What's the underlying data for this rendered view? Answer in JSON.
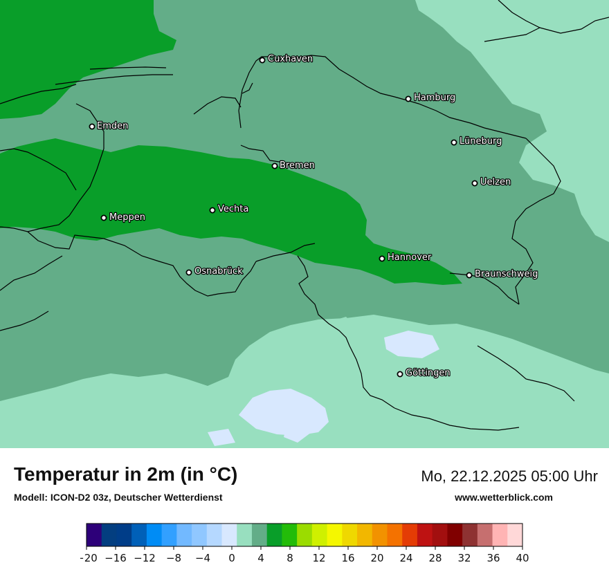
{
  "map": {
    "title": "Temperatur in 2m (in °C)",
    "model": "Modell: ICON-D2 03z, Deutscher Wetterdienst",
    "datetime": "Mo, 22.12.2025 05:00 Uhr",
    "website": "www.wetterblick.com",
    "cities": [
      {
        "name": "Cuxhaven"
      },
      {
        "name": "Hamburg"
      },
      {
        "name": "Emden"
      },
      {
        "name": "Lüneburg"
      },
      {
        "name": "Bremen"
      },
      {
        "name": "Uelzen"
      },
      {
        "name": "Vechta"
      },
      {
        "name": "Meppen"
      },
      {
        "name": "Hannover"
      },
      {
        "name": "Osnabrück"
      },
      {
        "name": "Braunschweig"
      },
      {
        "name": "Göttingen"
      }
    ],
    "colors": {
      "t2_4": "#98dfbf",
      "t4_6": "#63ad88",
      "t6_8": "#099e29",
      "t0_2": "#d8e8fe",
      "border": "#000000"
    }
  },
  "colorbar": {
    "ticks": [
      "−20",
      "−16",
      "−12",
      "−8",
      "−4",
      "0",
      "4",
      "8",
      "12",
      "16",
      "20",
      "24",
      "28",
      "32",
      "36",
      "40"
    ],
    "colors": [
      "#2d0079",
      "#033e80",
      "#003d88",
      "#0060b8",
      "#008cf5",
      "#32a0ff",
      "#72b9ff",
      "#90c7ff",
      "#b5d8ff",
      "#d8e8fe",
      "#98dfbf",
      "#63ad88",
      "#099e29",
      "#23bc09",
      "#9bdc00",
      "#cff000",
      "#f5f700",
      "#efd800",
      "#f2b700",
      "#f29200",
      "#f47200",
      "#e43c05",
      "#be1212",
      "#a20f0f",
      "#800000",
      "#8e3232",
      "#c66f6f",
      "#ffb4b4",
      "#ffd8d8"
    ]
  }
}
